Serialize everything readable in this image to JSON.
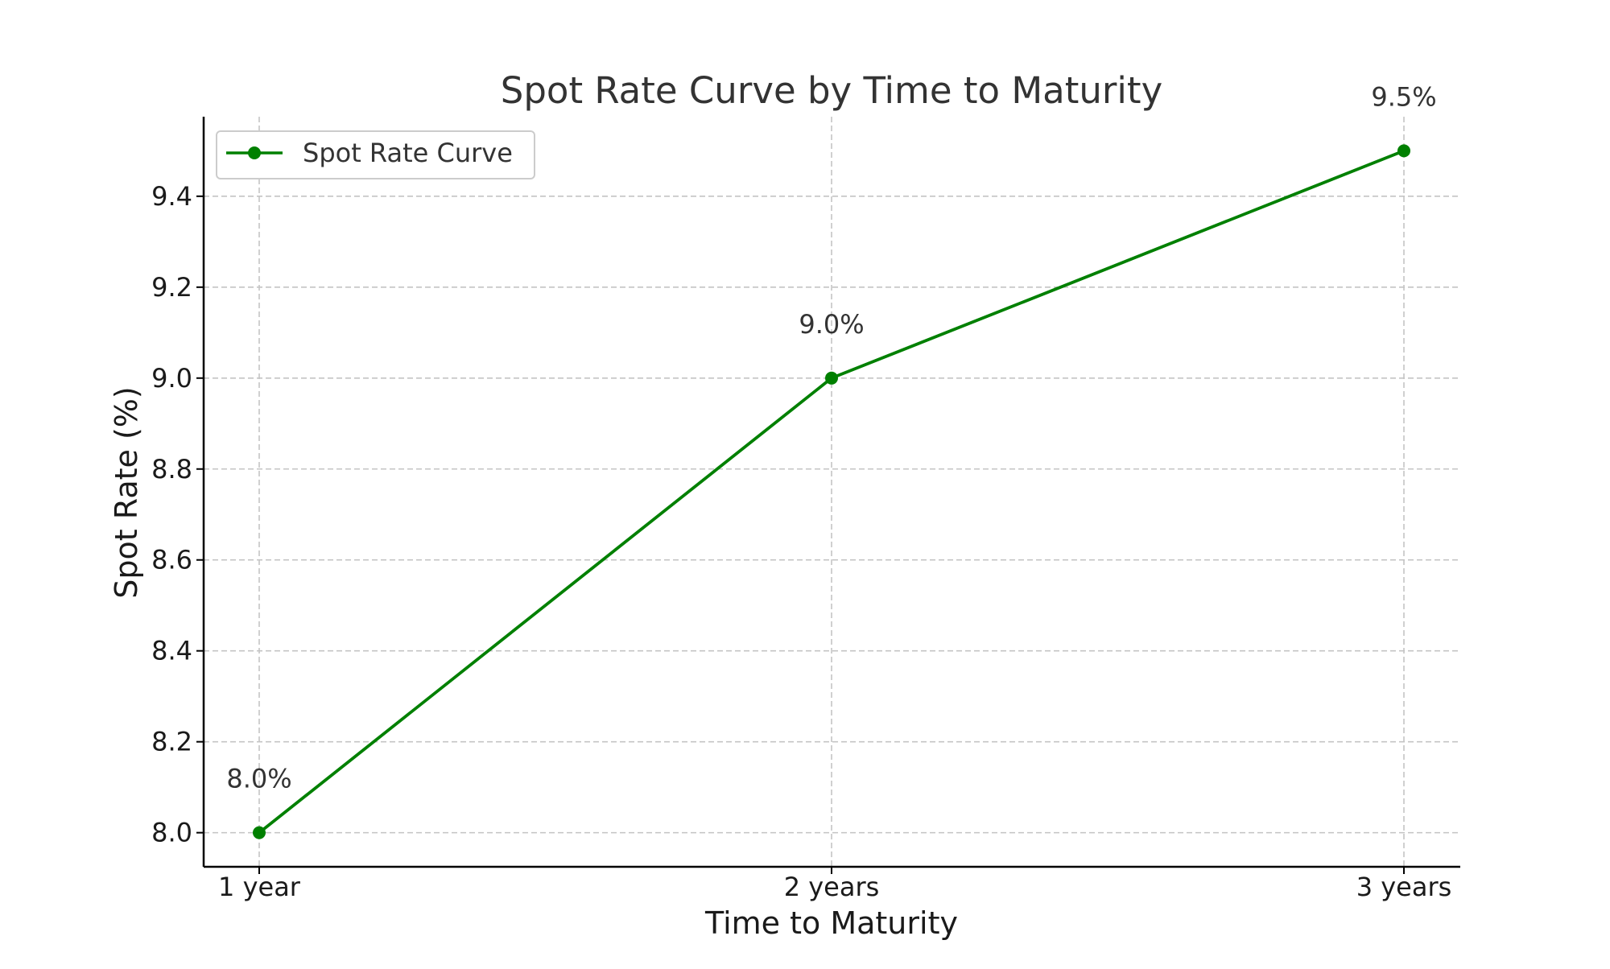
{
  "chart_data": {
    "type": "line",
    "title": "Spot Rate Curve by Time to Maturity",
    "xlabel": "Time to Maturity",
    "ylabel": "Spot Rate (%)",
    "categories": [
      "1 year",
      "2 years",
      "3 years"
    ],
    "series": [
      {
        "name": "Spot Rate Curve",
        "values": [
          8.0,
          9.0,
          9.5
        ],
        "color": "#008000",
        "data_labels": [
          "8.0%",
          "9.0%",
          "9.5%"
        ]
      }
    ],
    "ylim": [
      7.925,
      9.575
    ],
    "yticks": [
      8.0,
      8.2,
      8.4,
      8.6,
      8.8,
      9.0,
      9.2,
      9.4
    ],
    "ytick_labels": [
      "8.0",
      "8.2",
      "8.4",
      "8.6",
      "8.8",
      "9.0",
      "9.2",
      "9.4"
    ],
    "grid": true,
    "legend_position": "top-left"
  }
}
